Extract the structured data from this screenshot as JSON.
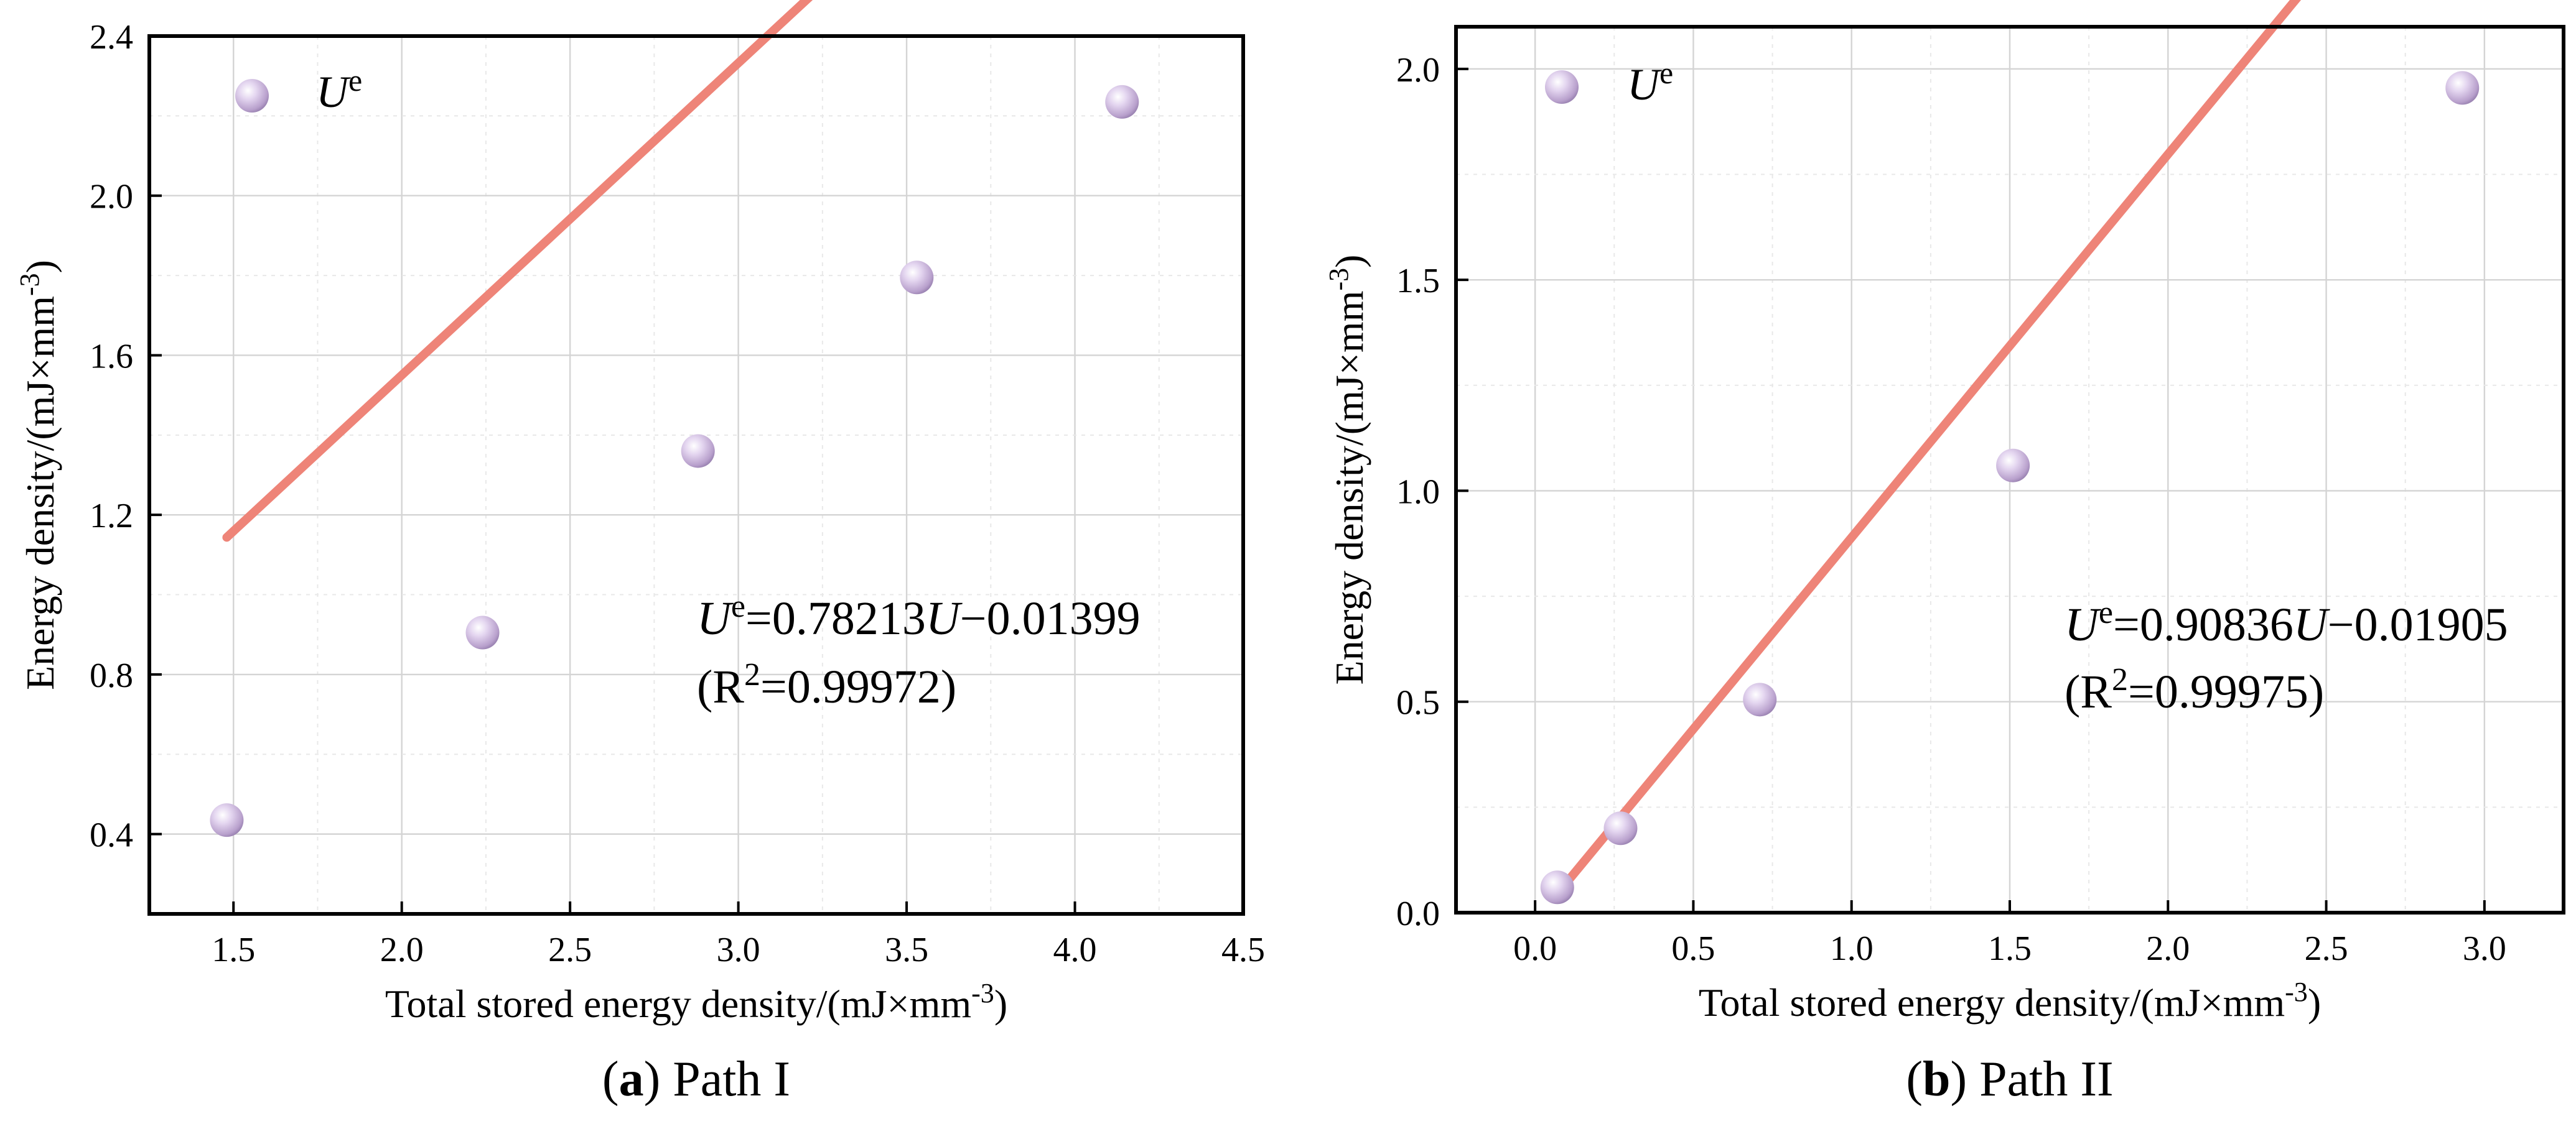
{
  "chart_data": [
    {
      "type": "scatter",
      "panel": "a",
      "caption": "Path I",
      "xlabel": "Total stored energy density/(mJ×mm",
      "xlabel_unit_sup": "-3",
      "xlabel_close": ")",
      "ylabel": "Energy density/(mJ×mm",
      "ylabel_unit_sup": "-3",
      "ylabel_close": ")",
      "xlim": [
        1.25,
        4.5
      ],
      "ylim": [
        0.2,
        2.4
      ],
      "xticks": [
        1.5,
        2.0,
        2.5,
        3.0,
        3.5,
        4.0,
        4.5
      ],
      "xtick_labels": [
        "1.5",
        "2.0",
        "2.5",
        "3.0",
        "3.5",
        "4.0",
        "4.5"
      ],
      "yticks": [
        0.4,
        0.8,
        1.2,
        1.6,
        2.0,
        2.4
      ],
      "ytick_labels": [
        "0.4",
        "0.8",
        "1.2",
        "1.6",
        "2.0",
        "2.4"
      ],
      "grid": true,
      "legend": {
        "position": "top-left",
        "label": "U",
        "label_sup": "e"
      },
      "series": [
        {
          "name": "Ue",
          "x": [
            1.48,
            2.24,
            2.88,
            3.53,
            4.14
          ],
          "y": [
            0.435,
            0.905,
            1.36,
            1.795,
            2.235
          ]
        }
      ],
      "fit": {
        "slope": 0.78213,
        "intercept": -0.01399,
        "x_range": [
          1.48,
          4.14
        ],
        "r2": "0.99972"
      },
      "equation": {
        "lhs": "U",
        "lhs_sup": "e",
        "mid": "=0.78213",
        "var": "U",
        "rest": "−0.01399"
      },
      "r2_text": {
        "open": "(R",
        "sup": "2",
        "rest": "=0.99972)"
      }
    },
    {
      "type": "scatter",
      "panel": "b",
      "caption": "Path II",
      "xlabel": "Total stored energy density/(mJ×mm",
      "xlabel_unit_sup": "-3",
      "xlabel_close": ")",
      "ylabel": "Energy density/(mJ×mm",
      "ylabel_unit_sup": "-3",
      "ylabel_close": ")",
      "xlim": [
        -0.25,
        3.25
      ],
      "ylim": [
        0.0,
        2.1
      ],
      "xticks": [
        0.0,
        0.5,
        1.0,
        1.5,
        2.0,
        2.5,
        3.0
      ],
      "xtick_labels": [
        "0.0",
        "0.5",
        "1.0",
        "1.5",
        "2.0",
        "2.5",
        "3.0"
      ],
      "yticks": [
        0.0,
        0.5,
        1.0,
        1.5,
        2.0
      ],
      "ytick_labels": [
        "0.0",
        "0.5",
        "1.0",
        "1.5",
        "2.0"
      ],
      "grid": true,
      "legend": {
        "position": "top-left",
        "label": "U",
        "label_sup": "e"
      },
      "series": [
        {
          "name": "Ue",
          "x": [
            0.07,
            0.27,
            0.71,
            1.51,
            2.93
          ],
          "y": [
            0.06,
            0.2,
            0.505,
            1.06,
            1.955
          ]
        }
      ],
      "fit": {
        "slope": 0.90836,
        "intercept": -0.01905,
        "x_range": [
          0.07,
          2.93
        ],
        "r2": "0.99975"
      },
      "equation": {
        "lhs": "U",
        "lhs_sup": "e",
        "mid": "=0.90836",
        "var": "U",
        "rest": "−0.01905"
      },
      "r2_text": {
        "open": "(R",
        "sup": "2",
        "rest": "=0.99975)"
      }
    }
  ],
  "captions": [
    {
      "open": "(",
      "letter": "a",
      "close": ")",
      "text": " Path I"
    },
    {
      "open": "(",
      "letter": "b",
      "close": ")",
      "text": " Path II"
    }
  ]
}
